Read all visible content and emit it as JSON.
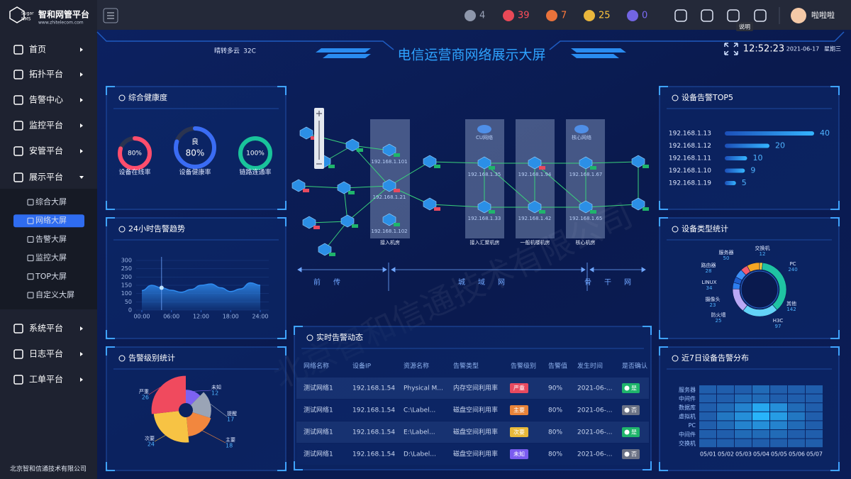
{
  "sidebar": {
    "logo": {
      "mark": [
        "Sugar",
        "NMS"
      ],
      "title": "智和网管平台",
      "url": "www.zhitelecom.com"
    },
    "menu": [
      "首页",
      "拓扑平台",
      "告警中心",
      "监控平台",
      "安管平台",
      "展示平台"
    ],
    "submenu": [
      "综合大屏",
      "网络大屏",
      "告警大屏",
      "监控大屏",
      "TOP大屏",
      "自定义大屏"
    ],
    "active_submenu": 1,
    "menu_bottom": [
      "系统平台",
      "日志平台",
      "工单平台"
    ],
    "footer": "北京智和信通技术有限公司"
  },
  "topbar": {
    "alerts": [
      {
        "count": 4,
        "color": "#9aa3b8"
      },
      {
        "count": 39,
        "color": "#ff4d5b"
      },
      {
        "count": 7,
        "color": "#ff7a3c"
      },
      {
        "count": 25,
        "color": "#ffc53d"
      },
      {
        "count": 0,
        "color": "#7b6cf6"
      }
    ],
    "tooltip": "说明",
    "user": "啦啦啦"
  },
  "header": {
    "weather": "晴转多云",
    "temperature": "32C",
    "title": "电信运营商网络展示大屏",
    "time": "12:52:23",
    "date": "2021-06-17",
    "weekday": "星期三"
  },
  "watermark": "北京智和信通技术有限公司",
  "health": {
    "title": "综合健康度",
    "gauges": [
      {
        "label": "设备在线率",
        "value": 80,
        "value_label": "80%",
        "color": "#ff4d6d"
      },
      {
        "label": "设备健康率",
        "value": 80,
        "value_label": "80%",
        "grade": "良",
        "color": "#3a6cf4"
      },
      {
        "label": "链路连通率",
        "value": 100,
        "value_label": "100%",
        "color": "#19c39b"
      }
    ]
  },
  "trend": {
    "type": "line",
    "title": "24小时告警趋势",
    "color": "#2f8cf0",
    "x": [
      0,
      2,
      4,
      6,
      8,
      10,
      12,
      14,
      16,
      18,
      20,
      22,
      24
    ],
    "values": [
      118,
      150,
      135,
      120,
      108,
      125,
      150,
      158,
      135,
      112,
      128,
      165,
      150
    ],
    "highlight": 2,
    "xlim": [
      0,
      24
    ],
    "xticks": [
      {
        "value": 0,
        "label": "00:00"
      },
      {
        "value": 6,
        "label": "06:00"
      },
      {
        "value": 12,
        "label": "12:00"
      },
      {
        "value": 18,
        "label": "18:00"
      },
      {
        "value": 24,
        "label": "24:00"
      }
    ],
    "ylim": [
      0,
      300
    ],
    "yticks": [
      0,
      50,
      100,
      150,
      200,
      250,
      300
    ]
  },
  "level": {
    "type": "pie",
    "title": "告警级别统计",
    "categories": [
      "未知",
      "提醒",
      "主要",
      "次要",
      "严重"
    ],
    "values": [
      12,
      17,
      18,
      24,
      26
    ],
    "colors": [
      "#7d62f2",
      "#9aa4b6",
      "#f2873e",
      "#f7c344",
      "#f04a5e"
    ]
  },
  "topology": {
    "nodes": [
      "192.168.1.101",
      "192.168.1.21",
      "192.168.1.102",
      "192.168.1.35",
      "192.168.1.33",
      "192.168.1.94",
      "192.168.1.42",
      "192.168.1.67",
      "192.168.1.65"
    ],
    "clouds": [
      "CU网络",
      "核心网络"
    ],
    "rooms": [
      "接入机房",
      "接入汇聚机房",
      "一般机楼机房",
      "核心机房"
    ],
    "segments": [
      "前传",
      "城域网",
      "骨干网"
    ]
  },
  "top5": {
    "type": "bar",
    "title": "设备告警TOP5",
    "color": "#2a9df4",
    "categories": [
      "192.168.1.13",
      "192.168.1.12",
      "192.168.1.11",
      "192.168.1.10",
      "192.168.1.19"
    ],
    "values": [
      40,
      20,
      10,
      9,
      5
    ]
  },
  "device_types": {
    "type": "pie",
    "title": "设备类型统计",
    "categories": [
      "交换机",
      "PC",
      "其他",
      "H3C",
      "防火墙",
      "摄像头",
      "LINUX",
      "路由器",
      "服务器"
    ],
    "values": [
      12,
      240,
      142,
      97,
      25,
      23,
      34,
      28,
      50
    ],
    "colors": [
      "#f7d23c",
      "#1fc3a3",
      "#63d3f7",
      "#b9a8f5",
      "#2d7ef0",
      "#1f5fd0",
      "#3d8ff5",
      "#f45c6e",
      "#f5a623"
    ]
  },
  "alarms": {
    "title": "实时告警动态",
    "columns": [
      "网络名称",
      "设备IP",
      "资源名称",
      "告警类型",
      "告警级别",
      "告警值",
      "发生时间",
      "是否确认"
    ],
    "rows": [
      [
        "测试网络1",
        "192.168.1.54",
        "Physical M...",
        "内存空间利用率",
        "严重",
        "90%",
        "2021-06-...",
        "是"
      ],
      [
        "测试网络1",
        "192.168.1.54",
        "C:\\Label...",
        "磁盘空间利用率",
        "主要",
        "80%",
        "2021-06-...",
        "否"
      ],
      [
        "测试网络1",
        "192.168.1.54",
        "E:\\Label...",
        "磁盘空间利用率",
        "次要",
        "80%",
        "2021-06-...",
        "是"
      ],
      [
        "测试网络1",
        "192.168.1.54",
        "D:\\Label...",
        "磁盘空间利用率",
        "未知",
        "80%",
        "2021-06-...",
        "否"
      ]
    ],
    "level_colors": [
      "#e84a5f",
      "#e8833a",
      "#e8b93a",
      "#7a5cf0"
    ],
    "confirm_colors": [
      "#1fb56b",
      "#6b7285",
      "#1fb56b",
      "#6b7285"
    ]
  },
  "heatmap": {
    "type": "heatmap",
    "title": "近7日设备告警分布",
    "rows": [
      "服务器",
      "中间件",
      "数据库",
      "虚拟机",
      "PC",
      "中间件",
      "交换机"
    ],
    "columns": [
      "05/01",
      "05/02",
      "05/03",
      "05/04",
      "05/05",
      "05/06",
      "05/07"
    ],
    "values": [
      [
        2,
        2,
        2,
        3,
        2,
        2,
        2
      ],
      [
        2,
        2,
        3,
        3,
        2,
        2,
        2
      ],
      [
        2,
        3,
        5,
        8,
        6,
        3,
        2
      ],
      [
        2,
        4,
        6,
        9,
        7,
        4,
        2
      ],
      [
        2,
        3,
        5,
        6,
        5,
        3,
        2
      ],
      [
        2,
        2,
        3,
        3,
        3,
        2,
        2
      ],
      [
        2,
        2,
        2,
        2,
        2,
        2,
        2
      ]
    ]
  }
}
